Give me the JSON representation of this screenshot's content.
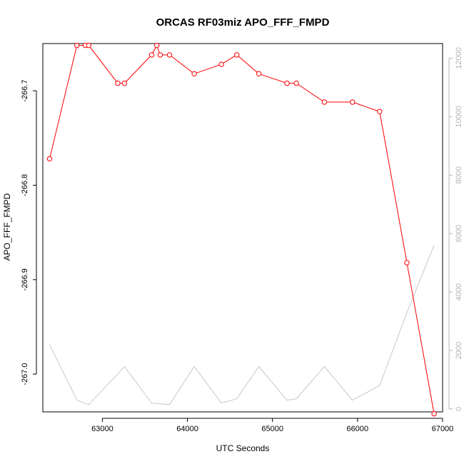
{
  "chart_data": {
    "type": "line",
    "title": "ORCAS RF03miz APO_FFF_FMPD",
    "xlabel": "UTC Seconds",
    "ylabel": "APO_FFF_FMPD",
    "xlim": [
      62300,
      67000
    ],
    "ylim": [
      -267.04,
      -266.65
    ],
    "y2lim": [
      -100,
      12500
    ],
    "x_ticks": [
      63000,
      64000,
      65000,
      66000,
      67000
    ],
    "y_ticks": [
      -267.0,
      -266.9,
      -266.8,
      -266.7
    ],
    "y_tick_labels": [
      "-267.0",
      "-266.9",
      "-266.8",
      "-266.7"
    ],
    "y2_ticks": [
      0,
      2000,
      4000,
      6000,
      8000,
      10000,
      12000
    ],
    "grid": false,
    "series": [
      {
        "role": "primary",
        "color": "#ff0000",
        "marker": "open-circle",
        "x": [
          62380,
          62700,
          62800,
          62840,
          63180,
          63260,
          63580,
          63640,
          63680,
          63790,
          64080,
          64400,
          64580,
          64840,
          65170,
          65280,
          65610,
          65940,
          66260,
          66580,
          66900
        ],
        "y": [
          -266.772,
          -266.652,
          -266.652,
          -266.652,
          -266.692,
          -266.692,
          -266.662,
          -266.652,
          -266.662,
          -266.662,
          -266.682,
          -266.672,
          -266.662,
          -266.682,
          -266.692,
          -266.692,
          -266.712,
          -266.712,
          -266.722,
          -266.882,
          -267.042
        ]
      },
      {
        "role": "secondary-axis",
        "color": "#c8c8c8",
        "marker": "none",
        "x": [
          62380,
          62700,
          62840,
          63180,
          63260,
          63580,
          63790,
          64080,
          64400,
          64580,
          64840,
          65170,
          65280,
          65610,
          65940,
          66260,
          66580,
          66900
        ],
        "y": [
          2200,
          300,
          150,
          1200,
          1450,
          200,
          150,
          1450,
          200,
          350,
          1450,
          300,
          350,
          1450,
          300,
          800,
          3300,
          5600
        ]
      }
    ]
  }
}
